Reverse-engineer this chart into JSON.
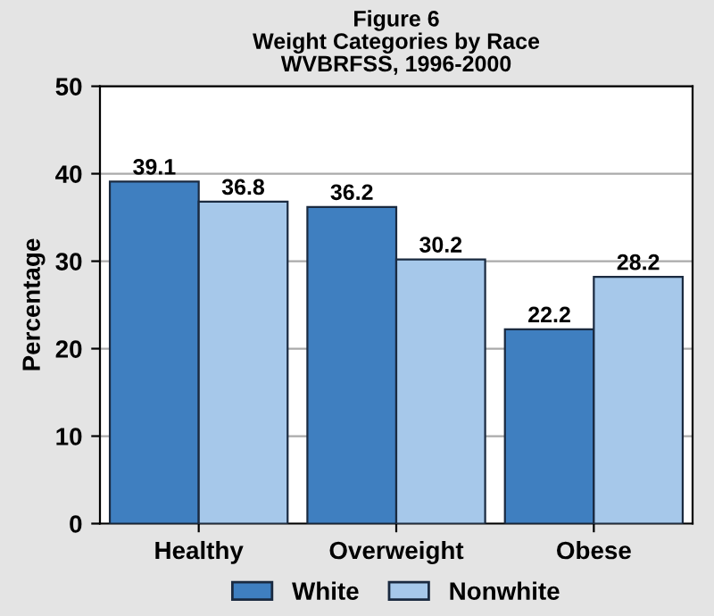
{
  "chart_data": {
    "type": "bar",
    "title": "Figure 6\nWeight Categories by Race\nWVBRFSS, 1996-2000",
    "ylabel": "Percentage",
    "categories": [
      "Healthy",
      "Overweight",
      "Obese"
    ],
    "series": [
      {
        "name": "White",
        "color": "#3f7fc0",
        "values": [
          39.1,
          36.2,
          22.2
        ]
      },
      {
        "name": "Nonwhite",
        "color": "#a6c8ea",
        "values": [
          36.8,
          30.2,
          28.2
        ]
      }
    ],
    "ylim": [
      0,
      50
    ],
    "yticks": [
      0,
      10,
      20,
      30,
      40,
      50
    ],
    "grid": "y",
    "legend": "bottom",
    "data_labels": true
  }
}
